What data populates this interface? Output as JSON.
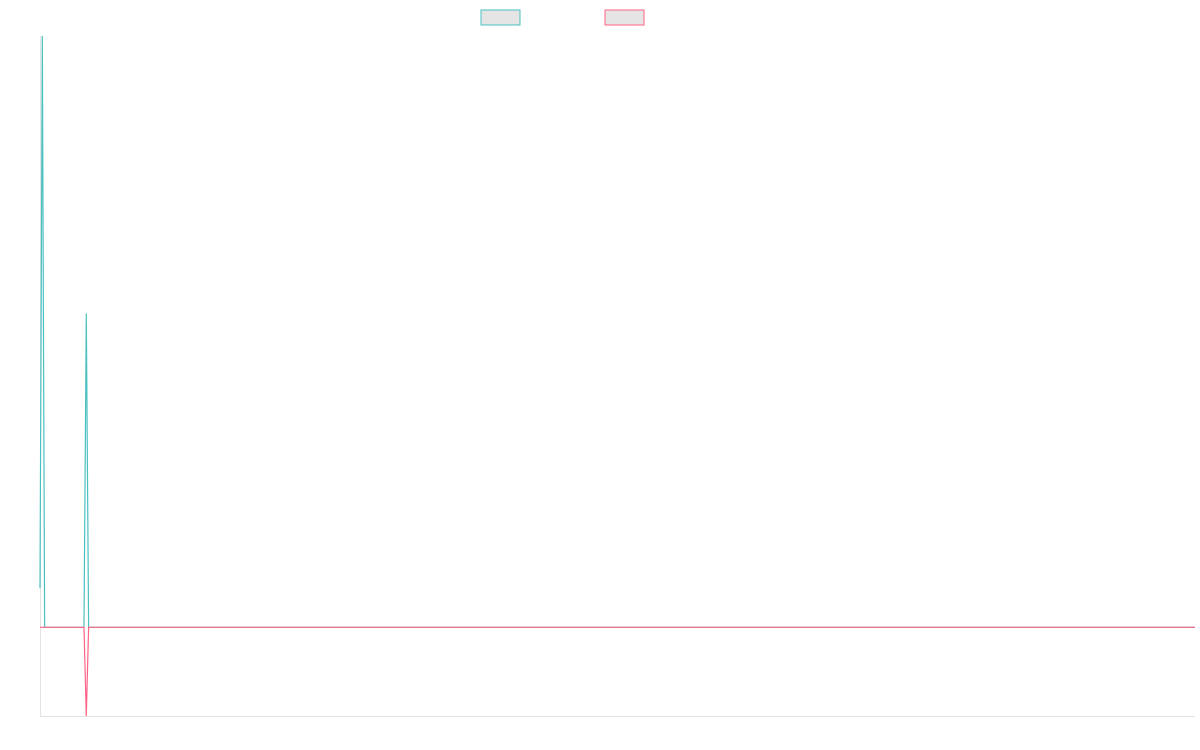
{
  "chart_data": {
    "type": "line",
    "title": "",
    "xlabel": "",
    "ylabel": "",
    "ylim": [
      -0.15,
      1.0
    ],
    "x_count": 500,
    "grid": false,
    "legend": "top",
    "series": [
      {
        "color": "#4bc0c0",
        "legend_fill": "#e5e5e5",
        "values_sparse": [
          [
            0,
            0.066
          ],
          [
            1,
            1.0
          ],
          [
            20,
            0.531
          ]
        ]
      },
      {
        "color": "#ff6384",
        "legend_fill": "#e5e5e5",
        "values_sparse": [
          [
            20,
            -0.15
          ]
        ]
      }
    ]
  }
}
